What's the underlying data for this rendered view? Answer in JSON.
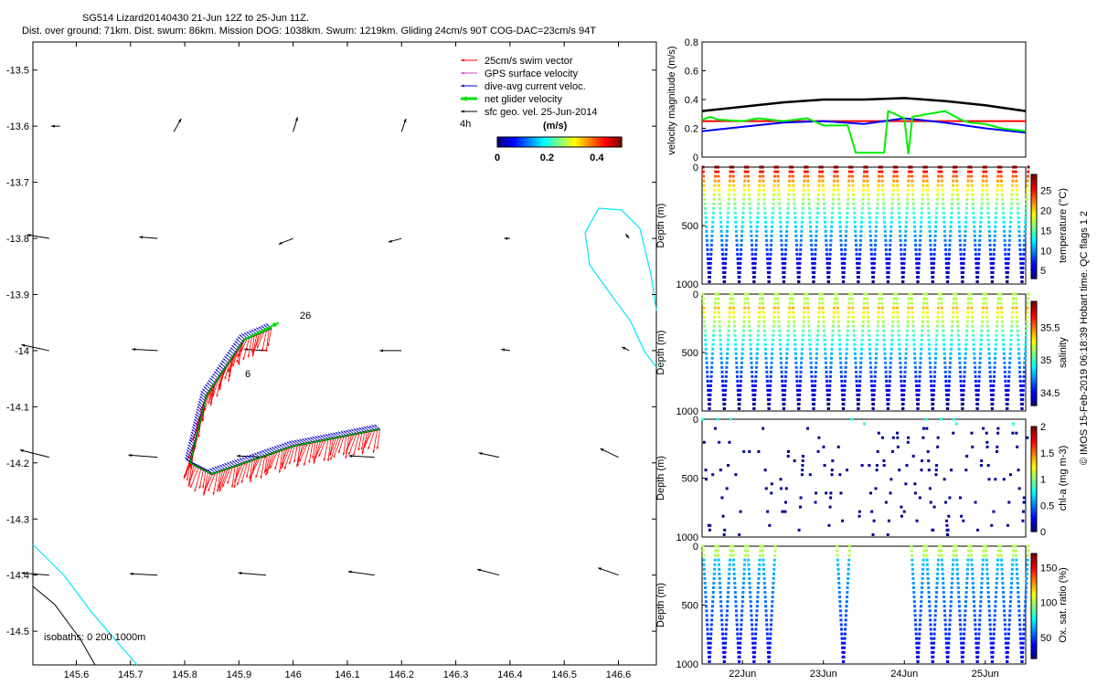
{
  "header": {
    "title_line1": "SG514 Lizard20140430 21-Jun 12Z to 25-Jun 11Z.",
    "title_line2": "Dist. over ground: 71km. Dist. swum: 86km. Mission DOG: 1038km. Swum: 1219km. Gliding 24cm/s 90T COG-DAC=23cm/s 94T"
  },
  "credit": "© IMOS 15-Feb-2019 06:18:39 Hobart time. QC flags 1  2",
  "colors": {
    "swim": "#ff0000",
    "gps": "#cc44cc",
    "dac": "#0000cc",
    "net": "#00dd00",
    "sfc": "#000000",
    "isobath": "#00e5ff"
  },
  "chart_data": [
    {
      "type": "scatter",
      "name": "map",
      "xlim": [
        145.52,
        146.67
      ],
      "ylim": [
        -14.56,
        -13.45
      ],
      "x_ticks": [
        145.6,
        145.7,
        145.8,
        145.9,
        146,
        146.1,
        146.2,
        146.3,
        146.4,
        146.5,
        146.6
      ],
      "y_ticks": [
        -13.5,
        -13.6,
        -13.7,
        -13.8,
        -13.9,
        -14,
        -14.1,
        -14.2,
        -14.3,
        -14.4,
        -14.5
      ],
      "legend": {
        "placement": "top-right",
        "entries": [
          "25cm/s swim vector",
          "GPS surface velocity",
          "dive-avg current veloc.",
          "net glider velocity",
          "sfc geo. vel. 25-Jun-2014"
        ],
        "time_note": "4h",
        "colorbar_label": "(m/s)",
        "colorbar_ticks": [
          "0",
          "0.2",
          "0.4"
        ]
      },
      "annotations": [
        "26",
        "6"
      ],
      "isobath_label": "isobaths: 0   200  1000m",
      "track": [
        [
          146.16,
          -14.14
        ],
        [
          146.0,
          -14.17
        ],
        [
          145.85,
          -14.22
        ],
        [
          145.81,
          -14.2
        ],
        [
          145.84,
          -14.08
        ],
        [
          145.91,
          -13.98
        ],
        [
          145.96,
          -13.96
        ]
      ],
      "sfc_vectors": [
        [
          145.57,
          -13.6,
          -0.12,
          0.0
        ],
        [
          145.78,
          -13.61,
          0.1,
          0.18
        ],
        [
          146.0,
          -13.61,
          0.06,
          0.2
        ],
        [
          146.2,
          -13.61,
          0.06,
          0.18
        ],
        [
          145.55,
          -13.8,
          -0.3,
          0.05
        ],
        [
          145.75,
          -13.8,
          -0.25,
          0.02
        ],
        [
          146.0,
          -13.8,
          -0.2,
          -0.08
        ],
        [
          146.2,
          -13.8,
          -0.18,
          -0.05
        ],
        [
          146.4,
          -13.8,
          -0.08,
          0.0
        ],
        [
          146.62,
          -13.8,
          -0.05,
          0.06
        ],
        [
          145.55,
          -14.0,
          -0.38,
          0.08
        ],
        [
          145.75,
          -14.0,
          -0.35,
          0.02
        ],
        [
          145.95,
          -14.0,
          -0.3,
          0.02
        ],
        [
          146.2,
          -14.0,
          -0.3,
          0.0
        ],
        [
          146.4,
          -14.0,
          -0.12,
          0.02
        ],
        [
          146.62,
          -14.0,
          -0.1,
          0.05
        ],
        [
          145.55,
          -14.19,
          -0.4,
          0.1
        ],
        [
          145.75,
          -14.19,
          -0.4,
          0.03
        ],
        [
          145.95,
          -14.19,
          -0.4,
          0.02
        ],
        [
          146.15,
          -14.19,
          -0.35,
          0.02
        ],
        [
          146.38,
          -14.19,
          -0.28,
          0.06
        ],
        [
          146.6,
          -14.19,
          -0.25,
          0.12
        ],
        [
          145.55,
          -14.4,
          -0.38,
          0.03
        ],
        [
          145.75,
          -14.4,
          -0.38,
          0.02
        ],
        [
          145.95,
          -14.4,
          -0.38,
          0.03
        ],
        [
          146.15,
          -14.4,
          -0.36,
          0.05
        ],
        [
          146.38,
          -14.4,
          -0.3,
          0.08
        ],
        [
          146.6,
          -14.4,
          -0.28,
          0.1
        ]
      ]
    },
    {
      "type": "line",
      "name": "velocity",
      "ylabel": "velocity magnitude (m/s)",
      "ylim": [
        0,
        0.8
      ],
      "y_ticks": [
        0,
        0.2,
        0.4,
        0.6,
        0.8
      ],
      "xlim": [
        21.5,
        25.5
      ],
      "series": [
        {
          "color": "#000000",
          "x": [
            21.5,
            22,
            22.5,
            23,
            23.5,
            24,
            24.5,
            25,
            25.5
          ],
          "values": [
            0.32,
            0.35,
            0.38,
            0.4,
            0.4,
            0.41,
            0.39,
            0.36,
            0.32
          ]
        },
        {
          "color": "#ff0000",
          "x": [
            21.5,
            25.5
          ],
          "values": [
            0.25,
            0.25
          ]
        },
        {
          "color": "#0000ff",
          "x": [
            21.5,
            22,
            22.5,
            23,
            23.5,
            24,
            24.5,
            25,
            25.5
          ],
          "values": [
            0.18,
            0.21,
            0.24,
            0.25,
            0.23,
            0.27,
            0.24,
            0.2,
            0.17
          ]
        },
        {
          "color": "#00ee00",
          "x": [
            21.5,
            21.6,
            21.7,
            22,
            22.2,
            22.5,
            22.8,
            23.0,
            23.3,
            23.4,
            23.45,
            23.6,
            23.75,
            23.8,
            24.0,
            24.05,
            24.1,
            24.3,
            24.5,
            24.7,
            24.8,
            25.0,
            25.2,
            25.5
          ],
          "values": [
            0.26,
            0.28,
            0.26,
            0.25,
            0.27,
            0.25,
            0.27,
            0.22,
            0.22,
            0.03,
            0.03,
            0.03,
            0.03,
            0.32,
            0.27,
            0.02,
            0.28,
            0.3,
            0.32,
            0.26,
            0.24,
            0.23,
            0.2,
            0.18
          ]
        }
      ]
    },
    {
      "type": "scatter",
      "name": "temperature",
      "ylabel": "Depth (m)",
      "ylim": [
        1000,
        0
      ],
      "y_ticks": [
        0,
        500,
        1000
      ],
      "colorbar_label": "temperature (°C)",
      "colorbar_ticks": [
        5,
        10,
        15,
        20,
        25
      ],
      "clim": [
        3,
        29
      ],
      "dives": 22,
      "coverage": "full"
    },
    {
      "type": "scatter",
      "name": "salinity",
      "ylabel": "Depth (m)",
      "ylim": [
        1000,
        0
      ],
      "y_ticks": [
        0,
        500,
        1000
      ],
      "colorbar_label": "salinity",
      "colorbar_ticks": [
        34.5,
        35,
        35.5
      ],
      "clim": [
        34.3,
        35.9
      ],
      "dives": 22,
      "coverage": "full"
    },
    {
      "type": "scatter",
      "name": "chla",
      "ylabel": "Depth (m)",
      "ylim": [
        1000,
        0
      ],
      "y_ticks": [
        0,
        500,
        1000
      ],
      "colorbar_label": "chl-a (mg m-3)",
      "colorbar_ticks": [
        0,
        0.5,
        1,
        1.5,
        2
      ],
      "clim": [
        0,
        2
      ],
      "dives": 22,
      "coverage": "sparse"
    },
    {
      "type": "scatter",
      "name": "oxygen",
      "ylabel": "Depth (m)",
      "ylim": [
        1000,
        0
      ],
      "y_ticks": [
        0,
        500,
        1000
      ],
      "colorbar_label": "Ox. sat. ratio (%)",
      "colorbar_ticks": [
        50,
        100,
        150
      ],
      "clim": [
        20,
        170
      ],
      "dives": 22,
      "coverage": "partial",
      "x_tick_labels": [
        "22Jun",
        "23Jun",
        "24Jun",
        "25Jun"
      ]
    }
  ]
}
